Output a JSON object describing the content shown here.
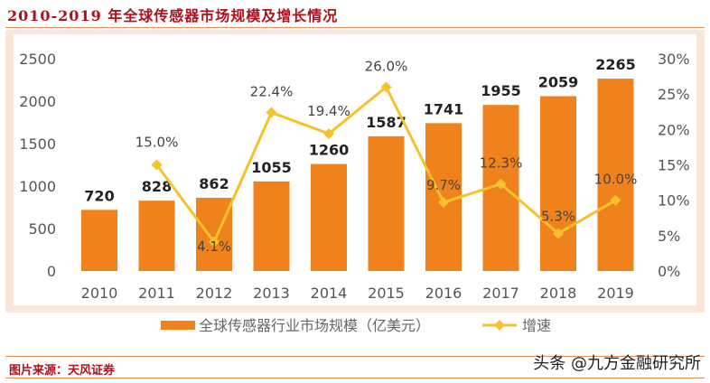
{
  "title": "2010-2019 年全球传感器市场规模及增长情况",
  "source": "图片来源：天风证券",
  "watermark": "头条 @九方金融研究所",
  "chart_data": {
    "type": "bar+line",
    "categories": [
      "2010",
      "2011",
      "2012",
      "2013",
      "2014",
      "2015",
      "2016",
      "2017",
      "2018",
      "2019"
    ],
    "series": [
      {
        "name": "全球传感器行业市场规模（亿美元）",
        "type": "bar",
        "axis": "left",
        "color": "#f0821e",
        "values": [
          720,
          828,
          862,
          1055,
          1260,
          1587,
          1741,
          1955,
          2059,
          2265
        ],
        "labels": [
          "720",
          "828",
          "862",
          "1055",
          "1260",
          "1587",
          "1741",
          "1955",
          "2059",
          "2265"
        ]
      },
      {
        "name": "增速",
        "type": "line",
        "axis": "right",
        "color": "#f5c22c",
        "values": [
          null,
          15.0,
          4.1,
          22.4,
          19.4,
          26.0,
          9.7,
          12.3,
          5.3,
          10.0
        ],
        "labels": [
          "",
          "15.0%",
          "4.1%",
          "22.4%",
          "19.4%",
          "26.0%",
          "9.7%",
          "12.3%",
          "5.3%",
          "10.0%"
        ]
      }
    ],
    "ylim_left": [
      0,
      2500
    ],
    "yticks_left": [
      "0",
      "500",
      "1000",
      "1500",
      "2000",
      "2500"
    ],
    "ylim_right": [
      0,
      30
    ],
    "yticks_right": [
      "0%",
      "5%",
      "10%",
      "15%",
      "20%",
      "25%",
      "30%"
    ],
    "legend": "bottom",
    "grid": false
  }
}
